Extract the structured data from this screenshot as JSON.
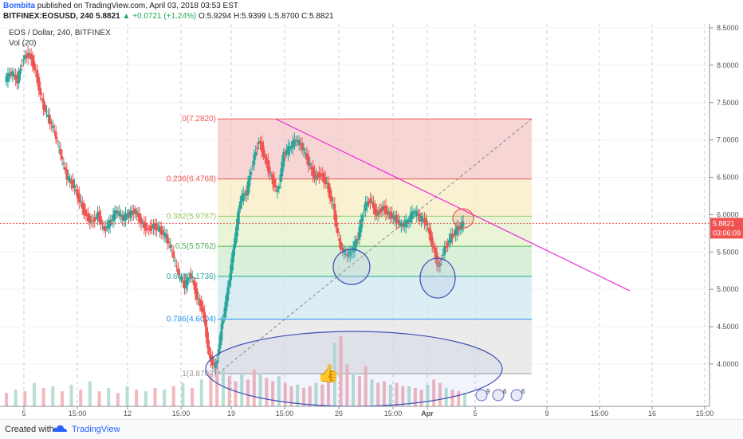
{
  "header": {
    "author": "Bombita",
    "published_text": "published on TradingView.com, April 03, 2018 03:53 EST",
    "ticker_line": "BITFINEX:EOSUSD, 240",
    "last": "5.8821",
    "change": "▲ +0.0721 (+1.24%)",
    "ohlc": "O:5.9294 H:5.9399 L:5.8700 C:5.8821"
  },
  "chart_legend": {
    "symbol": "EOS / Dollar, 240, BITFINEX",
    "volume": "Vol (20)"
  },
  "chart_data": {
    "type": "candlestick",
    "symbol": "EOS / Dollar",
    "interval": "240",
    "exchange": "BITFINEX",
    "ylim": [
      3.7,
      8.5
    ],
    "y_ticks": [
      "8.5000",
      "8.0000",
      "7.5000",
      "7.0000",
      "6.5000",
      "6.0000",
      "5.5000",
      "5.0000",
      "4.5000",
      "4.0000"
    ],
    "x_tick_labels": [
      "5",
      "15:00",
      "12",
      "15:00",
      "19",
      "15:00",
      "26",
      "15:00",
      "Apr",
      "5",
      "9",
      "15:00",
      "16",
      "15:00"
    ],
    "last_price": "5.8821",
    "countdown": "03:06:09",
    "fibonacci": [
      {
        "label": "0(7.2820)",
        "level": 7.282,
        "color": "#ef5350"
      },
      {
        "label": "0.236(6.4768)",
        "level": 6.4768,
        "color": "#ef5350"
      },
      {
        "label": "0.382(5.9787)",
        "level": 5.9787,
        "color": "#9ccc65"
      },
      {
        "label": "0.5(5.5762)",
        "level": 5.5762,
        "color": "#4caf50"
      },
      {
        "label": "0.618(5.1736)",
        "level": 5.1736,
        "color": "#26a69a"
      },
      {
        "label": "0.786(4.6004)",
        "level": 4.6004,
        "color": "#2196f3"
      },
      {
        "label": "1(3.8703)",
        "level": 3.8703,
        "color": "#9e9e9e"
      }
    ],
    "price_path": [
      [
        0,
        7.8
      ],
      [
        4,
        7.9
      ],
      [
        8,
        7.8
      ],
      [
        12,
        8.1
      ],
      [
        16,
        8.15
      ],
      [
        20,
        7.9
      ],
      [
        24,
        7.5
      ],
      [
        28,
        7.3
      ],
      [
        32,
        7.1
      ],
      [
        36,
        6.8
      ],
      [
        40,
        6.5
      ],
      [
        44,
        6.4
      ],
      [
        48,
        6.2
      ],
      [
        52,
        6.0
      ],
      [
        56,
        5.9
      ],
      [
        60,
        6.0
      ],
      [
        64,
        5.8
      ],
      [
        68,
        5.9
      ],
      [
        72,
        6.05
      ],
      [
        76,
        5.95
      ],
      [
        80,
        6.0
      ],
      [
        84,
        6.05
      ],
      [
        88,
        5.9
      ],
      [
        92,
        5.8
      ],
      [
        96,
        5.85
      ],
      [
        100,
        5.8
      ],
      [
        104,
        5.7
      ],
      [
        108,
        5.5
      ],
      [
        112,
        5.2
      ],
      [
        116,
        5.05
      ],
      [
        120,
        5.2
      ],
      [
        124,
        4.9
      ],
      [
        128,
        4.7
      ],
      [
        132,
        4.1
      ],
      [
        136,
        3.95
      ],
      [
        140,
        4.5
      ],
      [
        144,
        5.0
      ],
      [
        148,
        5.6
      ],
      [
        152,
        6.2
      ],
      [
        156,
        6.3
      ],
      [
        160,
        6.7
      ],
      [
        164,
        7.0
      ],
      [
        168,
        6.75
      ],
      [
        172,
        6.5
      ],
      [
        176,
        6.3
      ],
      [
        180,
        6.8
      ],
      [
        184,
        6.9
      ],
      [
        188,
        7.0
      ],
      [
        192,
        6.9
      ],
      [
        196,
        6.7
      ],
      [
        200,
        6.5
      ],
      [
        204,
        6.55
      ],
      [
        208,
        6.4
      ],
      [
        212,
        6.1
      ],
      [
        216,
        5.6
      ],
      [
        220,
        5.45
      ],
      [
        224,
        5.5
      ],
      [
        228,
        5.7
      ],
      [
        232,
        6.1
      ],
      [
        236,
        6.2
      ],
      [
        240,
        6.0
      ],
      [
        244,
        6.1
      ],
      [
        248,
        6.0
      ],
      [
        252,
        5.95
      ],
      [
        256,
        5.85
      ],
      [
        260,
        5.9
      ],
      [
        264,
        6.05
      ],
      [
        268,
        5.95
      ],
      [
        272,
        5.9
      ],
      [
        276,
        5.6
      ],
      [
        280,
        5.3
      ],
      [
        284,
        5.55
      ],
      [
        288,
        5.7
      ],
      [
        292,
        5.8
      ],
      [
        296,
        5.88
      ]
    ],
    "volumes": [
      [
        0,
        8
      ],
      [
        6,
        10
      ],
      [
        12,
        9
      ],
      [
        18,
        14
      ],
      [
        24,
        11
      ],
      [
        30,
        12
      ],
      [
        36,
        9
      ],
      [
        42,
        13
      ],
      [
        48,
        10
      ],
      [
        54,
        15
      ],
      [
        60,
        9
      ],
      [
        66,
        11
      ],
      [
        72,
        8
      ],
      [
        78,
        12
      ],
      [
        84,
        10
      ],
      [
        90,
        9
      ],
      [
        96,
        11
      ],
      [
        102,
        10
      ],
      [
        108,
        12
      ],
      [
        114,
        14
      ],
      [
        120,
        11
      ],
      [
        126,
        16
      ],
      [
        132,
        20
      ],
      [
        136,
        28
      ],
      [
        140,
        22
      ],
      [
        144,
        18
      ],
      [
        148,
        15
      ],
      [
        152,
        19
      ],
      [
        156,
        16
      ],
      [
        160,
        22
      ],
      [
        164,
        20
      ],
      [
        168,
        17
      ],
      [
        172,
        15
      ],
      [
        176,
        18
      ],
      [
        180,
        14
      ],
      [
        184,
        12
      ],
      [
        188,
        13
      ],
      [
        192,
        11
      ],
      [
        196,
        12
      ],
      [
        200,
        14
      ],
      [
        204,
        13
      ],
      [
        208,
        17
      ],
      [
        212,
        38
      ],
      [
        216,
        42
      ],
      [
        220,
        25
      ],
      [
        224,
        20
      ],
      [
        228,
        18
      ],
      [
        232,
        24
      ],
      [
        236,
        16
      ],
      [
        240,
        14
      ],
      [
        244,
        15
      ],
      [
        248,
        13
      ],
      [
        252,
        14
      ],
      [
        256,
        12
      ],
      [
        260,
        12
      ],
      [
        264,
        11
      ],
      [
        268,
        10
      ],
      [
        272,
        13
      ],
      [
        276,
        16
      ],
      [
        280,
        14
      ],
      [
        284,
        11
      ],
      [
        288,
        10
      ],
      [
        292,
        9
      ],
      [
        296,
        8
      ]
    ],
    "annotations": {
      "thumbs_up": "👍",
      "event_markers": [
        "9",
        "6",
        "6"
      ]
    }
  }
}
